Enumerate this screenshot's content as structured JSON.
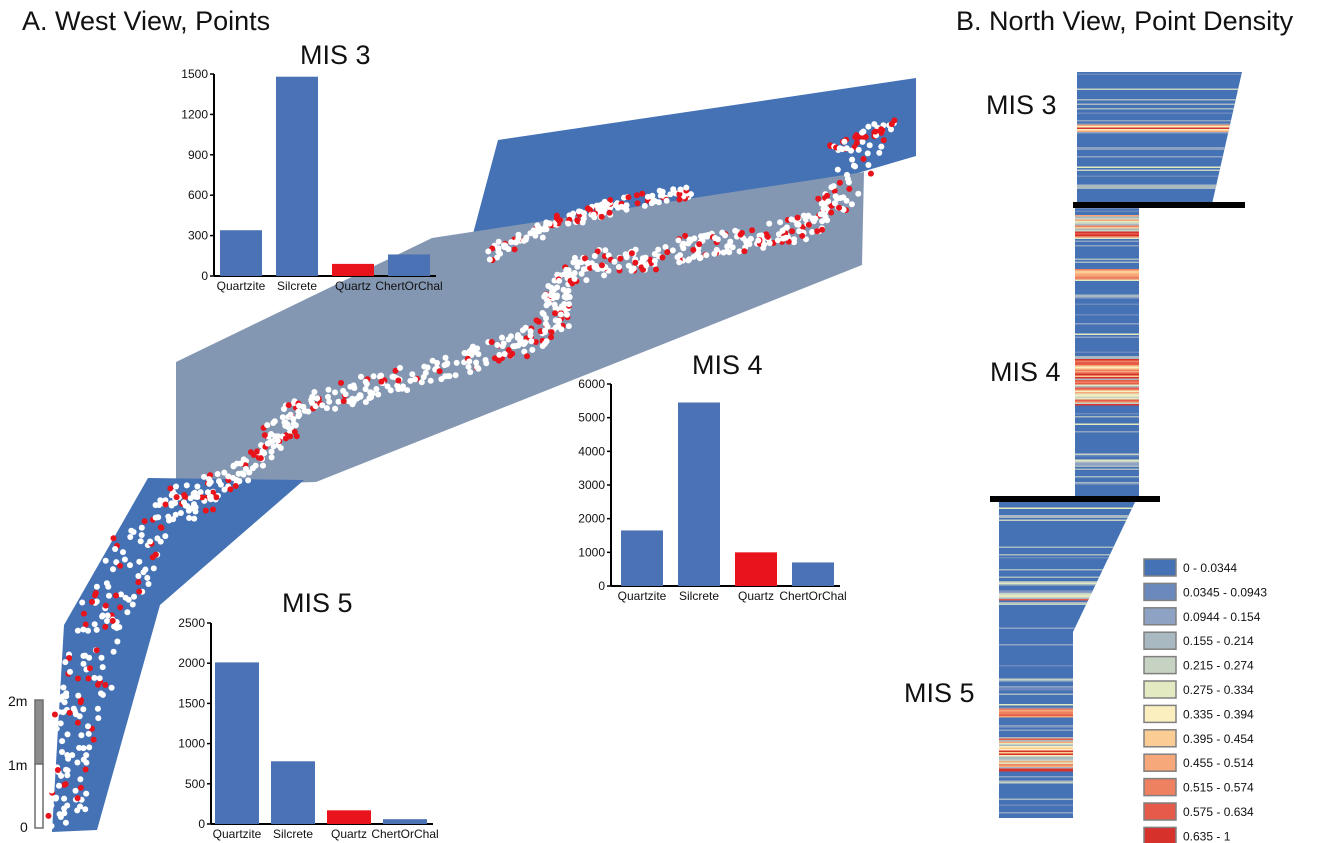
{
  "panel_a_title": "A. West View, Points",
  "panel_b_title": "B. North View, Point Density",
  "panel_b_labels": [
    "MIS 3",
    "MIS 4",
    "MIS 5"
  ],
  "scale_bar": {
    "ticks": [
      "2m",
      "1m",
      "0"
    ]
  },
  "colors": {
    "blue": "#4a72b4",
    "red": "#e8131b",
    "plane_dark": "#4472b5",
    "plane_light": "#8497b2"
  },
  "chart_data": [
    {
      "type": "bar",
      "title": "MIS 3",
      "categories": [
        "Quartzite",
        "Silcrete",
        "Quartz",
        "ChertOrChal"
      ],
      "values": [
        340,
        1480,
        90,
        160
      ],
      "bar_colors": [
        "#4a72b4",
        "#4a72b4",
        "#e8131b",
        "#4a72b4"
      ],
      "yticks": [
        "0",
        "300",
        "600",
        "900",
        "1200",
        "1500"
      ],
      "ylim": [
        0,
        1500
      ]
    },
    {
      "type": "bar",
      "title": "MIS 4",
      "categories": [
        "Quartzite",
        "Silcrete",
        "Quartz",
        "ChertOrChal"
      ],
      "values": [
        1650,
        5450,
        1000,
        700
      ],
      "bar_colors": [
        "#4a72b4",
        "#4a72b4",
        "#e8131b",
        "#4a72b4"
      ],
      "yticks": [
        "0",
        "1000",
        "2000",
        "3000",
        "4000",
        "5000",
        "6000"
      ],
      "ylim": [
        0,
        6000
      ]
    },
    {
      "type": "bar",
      "title": "MIS 5",
      "categories": [
        "Quartzite",
        "Silcrete",
        "Quartz",
        "ChertOrChal"
      ],
      "values": [
        2010,
        780,
        170,
        60
      ],
      "bar_colors": [
        "#4a72b4",
        "#4a72b4",
        "#e8131b",
        "#4a72b4"
      ],
      "yticks": [
        "0",
        "500",
        "1000",
        "1500",
        "2000",
        "2500"
      ],
      "ylim": [
        0,
        2500
      ]
    },
    {
      "type": "heatmap",
      "legend": [
        {
          "label": "0 - 0.0344",
          "color": "#4472b5"
        },
        {
          "label": "0.0345 - 0.0943",
          "color": "#6b89bd"
        },
        {
          "label": "0.0944 - 0.154",
          "color": "#8ea2c4"
        },
        {
          "label": "0.155 - 0.214",
          "color": "#a9b9c1"
        },
        {
          "label": "0.215 - 0.274",
          "color": "#c7d3c2"
        },
        {
          "label": "0.275 - 0.334",
          "color": "#e3e9c1"
        },
        {
          "label": "0.335 - 0.394",
          "color": "#fbefbf"
        },
        {
          "label": "0.395 - 0.454",
          "color": "#fbcc93"
        },
        {
          "label": "0.455 - 0.514",
          "color": "#f7a87a"
        },
        {
          "label": "0.515 - 0.574",
          "color": "#ee8160"
        },
        {
          "label": "0.575 - 0.634",
          "color": "#e55a48"
        },
        {
          "label": "0.635 - 1",
          "color": "#d7312b"
        }
      ]
    }
  ]
}
